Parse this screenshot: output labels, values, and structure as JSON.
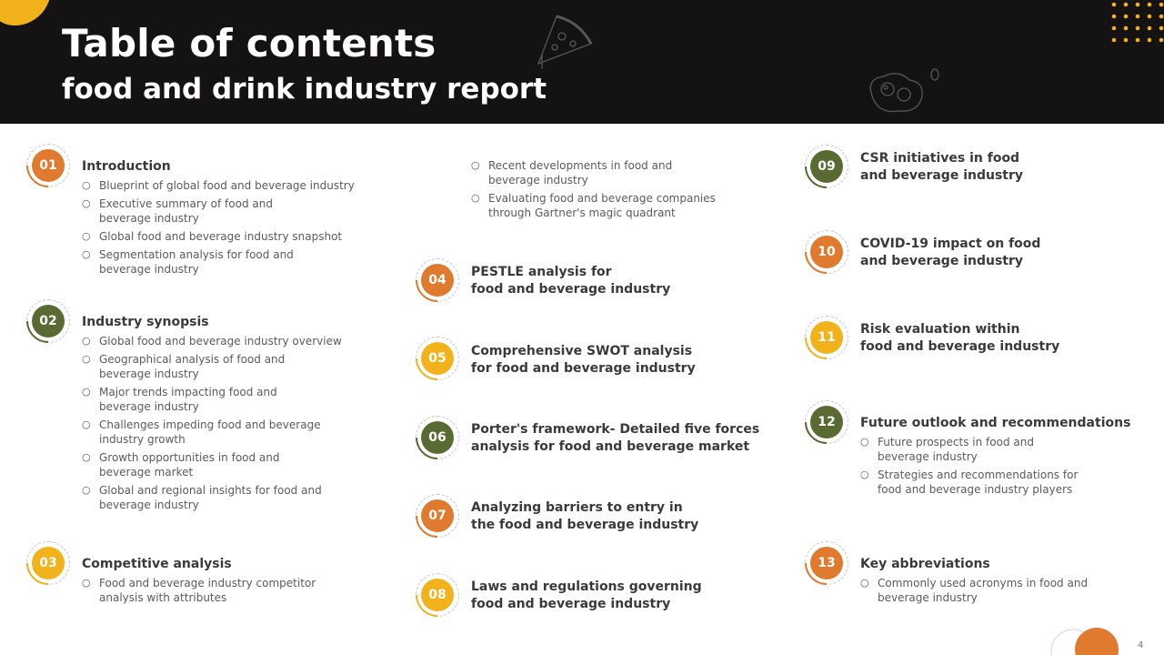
{
  "header": {
    "title": "Table of contents",
    "subtitle": "food and drink industry report"
  },
  "colors": {
    "orange": "#e07a2e",
    "green": "#5a6a33",
    "yellow": "#f2b21c",
    "dark": "#141212"
  },
  "sections": [
    {
      "num": "01",
      "title": "Introduction",
      "color": "orange",
      "items": [
        "Blueprint of global food and beverage  industry",
        "Executive summary of food and\nbeverage  industry",
        "Global food and beverage  industry snapshot",
        "Segmentation analysis for food and\nbeverage  industry"
      ]
    },
    {
      "num": "02",
      "title": "Industry synopsis",
      "color": "green",
      "items": [
        "Global food and beverage  industry overview",
        "Geographical analysis of food and\nbeverage  industry",
        "Major trends impacting food and\nbeverage  industry",
        "Challenges impeding food  and beverage\nindustry growth",
        "Growth opportunities  in food and\nbeverage  market",
        "Global and regional insights for food  and\nbeverage  industry"
      ]
    },
    {
      "num": "03",
      "title": "Competitive analysis",
      "color": "yellow",
      "items": [
        "Food and beverage  industry competitor\nanalysis with attributes"
      ]
    },
    {
      "num": "",
      "title": "",
      "color": "",
      "items": [
        "Recent developments  in food and\nbeverage  industry",
        "Evaluating food and beverage  companies\nthrough Gartner's magic quadrant"
      ]
    },
    {
      "num": "04",
      "title": "PESTLE analysis for\nfood and beverage industry",
      "color": "orange",
      "items": []
    },
    {
      "num": "05",
      "title": "Comprehensive SWOT analysis\nfor food and beverage industry",
      "color": "yellow",
      "items": []
    },
    {
      "num": "06",
      "title": "Porter's framework- Detailed five forces\nanalysis for food and beverage market",
      "color": "green",
      "items": []
    },
    {
      "num": "07",
      "title": "Analyzing barriers to entry in\nthe food and beverage industry",
      "color": "orange",
      "items": []
    },
    {
      "num": "08",
      "title": "Laws and regulations governing\nfood and beverage industry",
      "color": "yellow",
      "items": []
    },
    {
      "num": "09",
      "title": "CSR initiatives in food\nand beverage industry",
      "color": "green",
      "items": []
    },
    {
      "num": "10",
      "title": "COVID-19 impact on food\nand beverage industry",
      "color": "orange",
      "items": []
    },
    {
      "num": "11",
      "title": "Risk evaluation within\nfood and beverage industry",
      "color": "yellow",
      "items": []
    },
    {
      "num": "12",
      "title": "Future outlook and recommendations",
      "color": "green",
      "items": [
        "Future prospects in food and\nbeverage  industry",
        "Strategies and recommendations for\nfood and beverage  industry players"
      ]
    },
    {
      "num": "13",
      "title": "Key abbreviations",
      "color": "orange",
      "items": [
        "Commonly used acronyms in food and\nbeverage  industry"
      ]
    }
  ],
  "page_number": "4"
}
